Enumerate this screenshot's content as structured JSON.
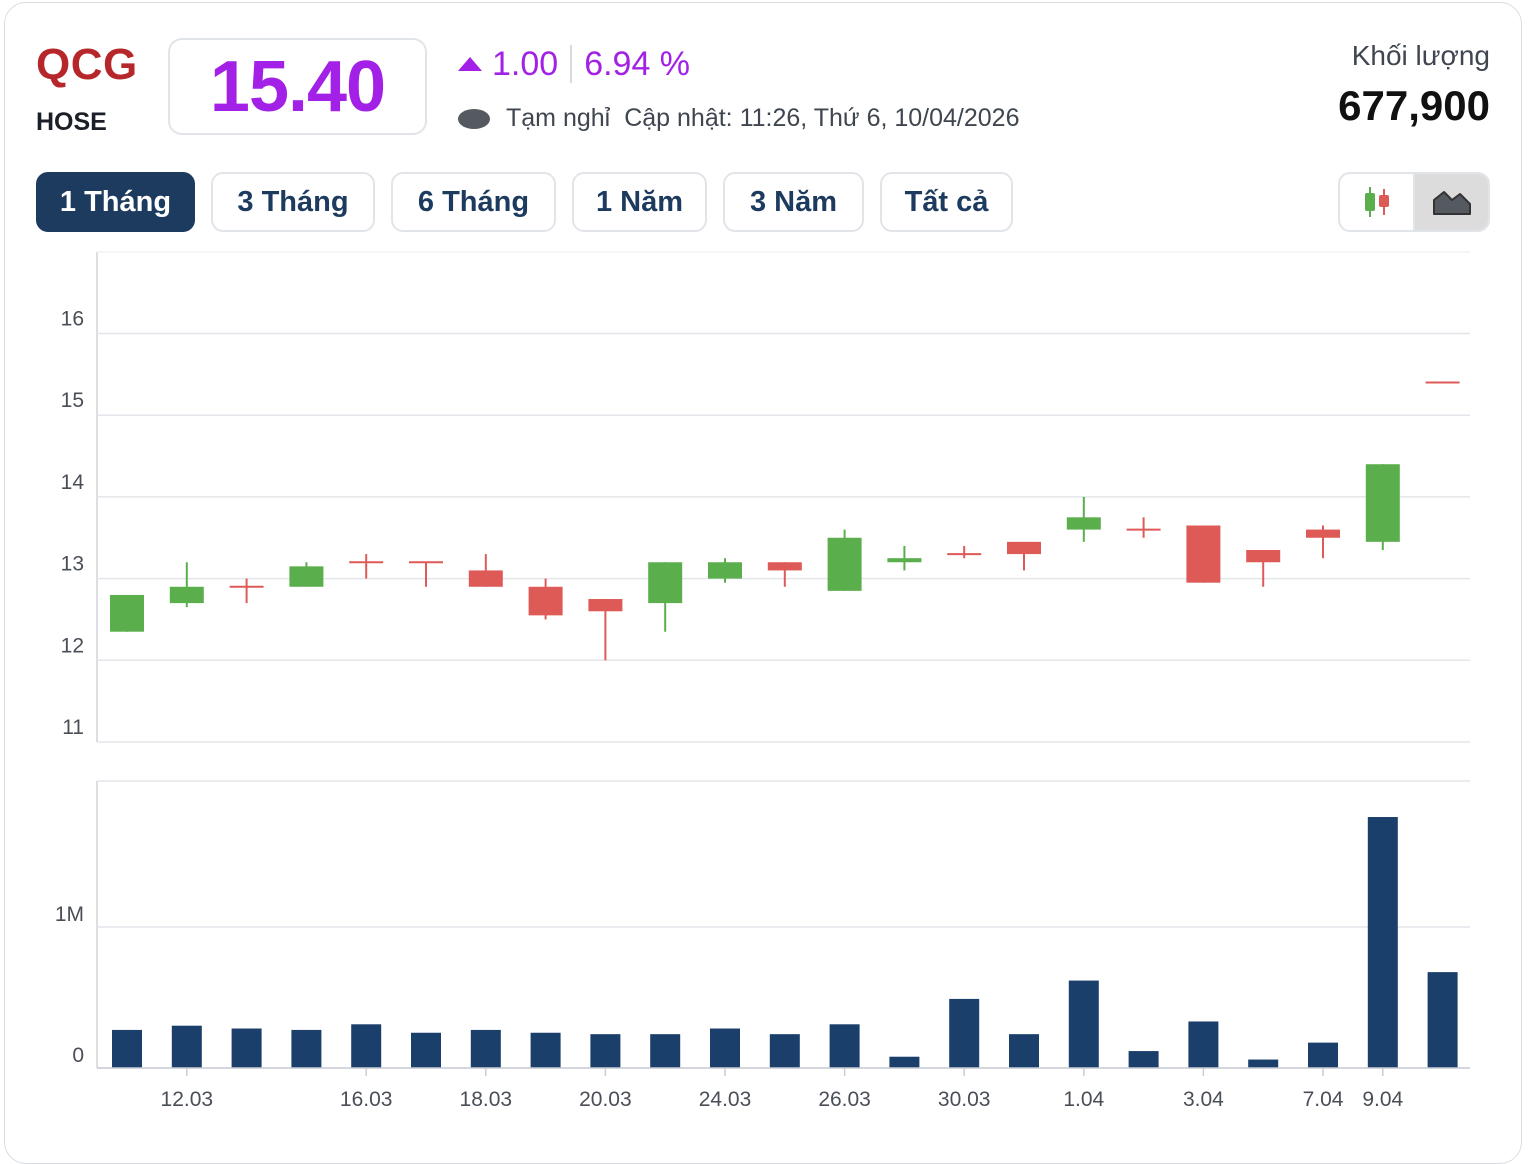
{
  "header": {
    "symbol": "QCG",
    "exchange": "HOSE",
    "price": "15.40",
    "change": "1.00",
    "change_pct": "6.94 %",
    "status": "Tạm nghỉ",
    "updated": "Cập nhật: 11:26, Thứ 6, 10/04/2026",
    "volume_label": "Khối lượng",
    "volume_value": "677,900"
  },
  "tabs": [
    "1 Tháng",
    "3 Tháng",
    "6 Tháng",
    "1 Năm",
    "3 Năm",
    "Tất cả"
  ],
  "active_tab": "1 Tháng",
  "chart_toggle": {
    "options": [
      "candlestick-icon",
      "area-chart-icon"
    ],
    "selected": "area-chart-icon"
  },
  "colors": {
    "up": "#5bae4c",
    "down": "#de5a57",
    "volume": "#1b3f6b",
    "price": "#a321e6",
    "brand": "#b6272b"
  },
  "chart_data": [
    {
      "type": "candlestick",
      "ylim": [
        11,
        17
      ],
      "yticks": [
        11,
        12,
        13,
        14,
        15,
        16
      ],
      "candles": [
        {
          "o": 12.35,
          "h": 12.8,
          "l": 12.35,
          "c": 12.8
        },
        {
          "o": 12.7,
          "h": 13.2,
          "l": 12.65,
          "c": 12.9
        },
        {
          "o": 12.9,
          "h": 13.0,
          "l": 12.7,
          "c": 12.9
        },
        {
          "o": 12.9,
          "h": 13.2,
          "l": 12.9,
          "c": 13.15
        },
        {
          "o": 13.2,
          "h": 13.3,
          "l": 13.0,
          "c": 13.2
        },
        {
          "o": 13.2,
          "h": 13.2,
          "l": 12.9,
          "c": 13.2
        },
        {
          "o": 13.1,
          "h": 13.3,
          "l": 12.9,
          "c": 12.9
        },
        {
          "o": 12.9,
          "h": 13.0,
          "l": 12.5,
          "c": 12.55
        },
        {
          "o": 12.75,
          "h": 12.75,
          "l": 12.0,
          "c": 12.6
        },
        {
          "o": 12.7,
          "h": 13.2,
          "l": 12.35,
          "c": 13.2
        },
        {
          "o": 13.0,
          "h": 13.25,
          "l": 12.95,
          "c": 13.2
        },
        {
          "o": 13.2,
          "h": 13.2,
          "l": 12.9,
          "c": 13.1
        },
        {
          "o": 12.85,
          "h": 13.6,
          "l": 12.85,
          "c": 13.5
        },
        {
          "o": 13.2,
          "h": 13.4,
          "l": 13.1,
          "c": 13.25
        },
        {
          "o": 13.3,
          "h": 13.4,
          "l": 13.25,
          "c": 13.3
        },
        {
          "o": 13.45,
          "h": 13.45,
          "l": 13.1,
          "c": 13.3
        },
        {
          "o": 13.6,
          "h": 14.0,
          "l": 13.45,
          "c": 13.75
        },
        {
          "o": 13.6,
          "h": 13.75,
          "l": 13.5,
          "c": 13.6
        },
        {
          "o": 13.65,
          "h": 13.65,
          "l": 12.95,
          "c": 12.95
        },
        {
          "o": 13.35,
          "h": 13.35,
          "l": 12.9,
          "c": 13.2
        },
        {
          "o": 13.6,
          "h": 13.65,
          "l": 13.25,
          "c": 13.5
        },
        {
          "o": 13.45,
          "h": 14.4,
          "l": 13.35,
          "c": 14.4
        },
        {
          "o": 15.4,
          "h": 15.4,
          "l": 15.4,
          "c": 15.4
        }
      ]
    },
    {
      "type": "bar",
      "ylim": [
        0,
        1.8
      ],
      "ytick_labels": [
        "0",
        "1M"
      ],
      "yticks": [
        0,
        1
      ],
      "values": [
        0.27,
        0.3,
        0.28,
        0.27,
        0.31,
        0.25,
        0.27,
        0.25,
        0.24,
        0.24,
        0.28,
        0.24,
        0.31,
        0.08,
        0.49,
        0.24,
        0.62,
        0.12,
        0.33,
        0.06,
        0.18,
        1.78,
        0.68
      ]
    }
  ],
  "x_labels": [
    "12.03",
    "16.03",
    "18.03",
    "20.03",
    "24.03",
    "26.03",
    "30.03",
    "1.04",
    "3.04",
    "7.04",
    "9.04"
  ]
}
